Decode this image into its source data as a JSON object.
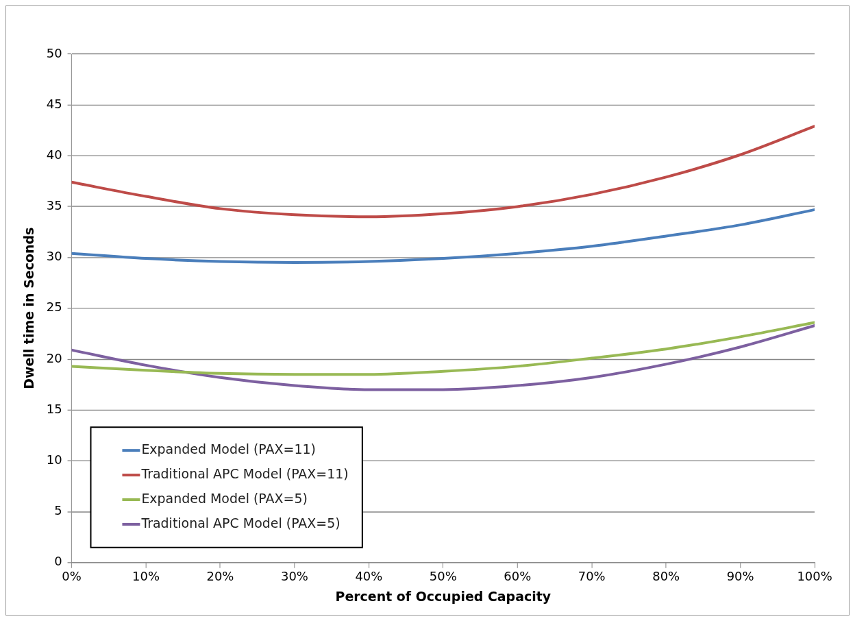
{
  "chart_data": {
    "type": "line",
    "xlabel": "Percent of Occupied Capacity",
    "ylabel": "Dwell time in Seconds",
    "x": [
      0,
      10,
      20,
      30,
      40,
      50,
      60,
      70,
      80,
      90,
      100
    ],
    "series": [
      {
        "name": "Expanded Model (PAX=11)",
        "color": "#4a7ebb",
        "values": [
          30.4,
          29.9,
          29.6,
          29.5,
          29.6,
          29.9,
          30.4,
          31.1,
          32.1,
          33.2,
          34.7
        ]
      },
      {
        "name": "Traditional APC Model (PAX=11)",
        "color": "#be4b48",
        "values": [
          37.4,
          36.0,
          34.8,
          34.2,
          34.0,
          34.3,
          35.0,
          36.2,
          37.9,
          40.1,
          42.9
        ]
      },
      {
        "name": "Expanded Model (PAX=5)",
        "color": "#98b954",
        "values": [
          19.3,
          18.9,
          18.6,
          18.5,
          18.5,
          18.8,
          19.3,
          20.1,
          21.0,
          22.2,
          23.6
        ]
      },
      {
        "name": "Traditional APC Model (PAX=5)",
        "color": "#7d60a0",
        "values": [
          20.9,
          19.4,
          18.2,
          17.4,
          17.0,
          17.0,
          17.4,
          18.2,
          19.5,
          21.2,
          23.3
        ]
      }
    ],
    "xlim": [
      0,
      100
    ],
    "xticks": [
      {
        "value": 0,
        "label": "0%"
      },
      {
        "value": 10,
        "label": "10%"
      },
      {
        "value": 20,
        "label": "20%"
      },
      {
        "value": 30,
        "label": "30%"
      },
      {
        "value": 40,
        "label": "40%"
      },
      {
        "value": 50,
        "label": "50%"
      },
      {
        "value": 60,
        "label": "60%"
      },
      {
        "value": 70,
        "label": "70%"
      },
      {
        "value": 80,
        "label": "80%"
      },
      {
        "value": 90,
        "label": "90%"
      },
      {
        "value": 100,
        "label": "100%"
      }
    ],
    "ylim": [
      0,
      50
    ],
    "yticks": [
      0,
      5,
      10,
      15,
      20,
      25,
      30,
      35,
      40,
      45,
      50
    ],
    "grid": "y",
    "legend": "bottom left",
    "marker": "none",
    "line_style": "solid"
  }
}
